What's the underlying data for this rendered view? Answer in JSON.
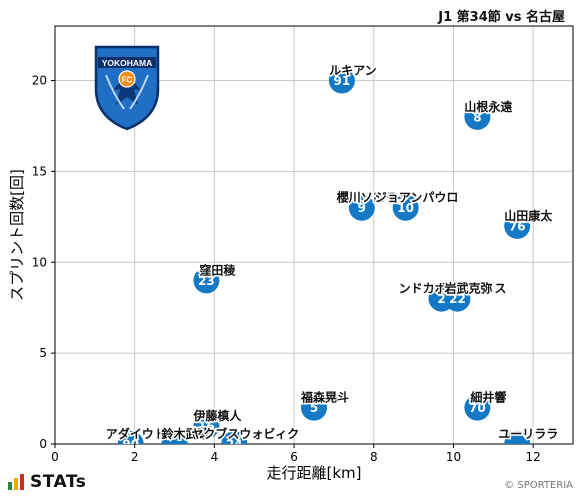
{
  "header": {
    "match_title": "J1 第34節 vs 名古屋"
  },
  "footer": {
    "brand": "STATs",
    "credit": "© SPORTERIA"
  },
  "emblem": {
    "text": "YOKOHAMA",
    "badge_text": "FC",
    "colors": {
      "blue": "#1f6fc4",
      "dark": "#0b2f6b",
      "orange": "#f28c1a"
    }
  },
  "colors": {
    "marker": "#1479c4",
    "grid": "#c8c8c8",
    "stats_bar_1": "#2b8a3e",
    "stats_bar_2": "#f2a900",
    "stats_bar_3": "#d62828"
  },
  "chart_data": {
    "type": "scatter",
    "xlabel": "走行距離[km]",
    "ylabel": "スプリント回数[回]",
    "xlim": [
      0,
      13
    ],
    "ylim": [
      0,
      23
    ],
    "xticks": [
      0,
      2,
      4,
      6,
      8,
      10,
      12
    ],
    "yticks": [
      0,
      5,
      10,
      15,
      20
    ],
    "grid": true,
    "points": [
      {
        "number": "91",
        "name": "ルキアン",
        "x": 7.2,
        "y": 20
      },
      {
        "number": "8",
        "name": "山根永遠",
        "x": 10.6,
        "y": 18
      },
      {
        "number": "9",
        "name": "櫻川ソロモン",
        "x": 7.7,
        "y": 13
      },
      {
        "number": "10",
        "name": "ジョアンパウロ",
        "x": 8.8,
        "y": 13
      },
      {
        "number": "76",
        "name": "山田康太",
        "x": 11.6,
        "y": 12
      },
      {
        "number": "23",
        "name": "窪田稜",
        "x": 3.8,
        "y": 9
      },
      {
        "number": "2",
        "name": "ンドカボニフェイス",
        "x": 9.7,
        "y": 8
      },
      {
        "number": "22",
        "name": "岩武克弥",
        "x": 10.1,
        "y": 8
      },
      {
        "number": "5",
        "name": "福森晃斗",
        "x": 6.5,
        "y": 2
      },
      {
        "number": "70",
        "name": "細井響",
        "x": 10.6,
        "y": 2
      },
      {
        "number": "16",
        "name": "伊藤槙人",
        "x": 3.8,
        "y": 1
      },
      {
        "number": "90",
        "name": "アダイウトン",
        "x": 1.9,
        "y": 0
      },
      {
        "number": "",
        "name": "鈴木武蔵",
        "x": 3.0,
        "y": 0
      },
      {
        "number": "24",
        "name": "ヤクブスウォビィク",
        "x": 4.5,
        "y": 0
      },
      {
        "number": "",
        "name": "ユーリララ",
        "x": 11.6,
        "y": 0
      }
    ]
  }
}
